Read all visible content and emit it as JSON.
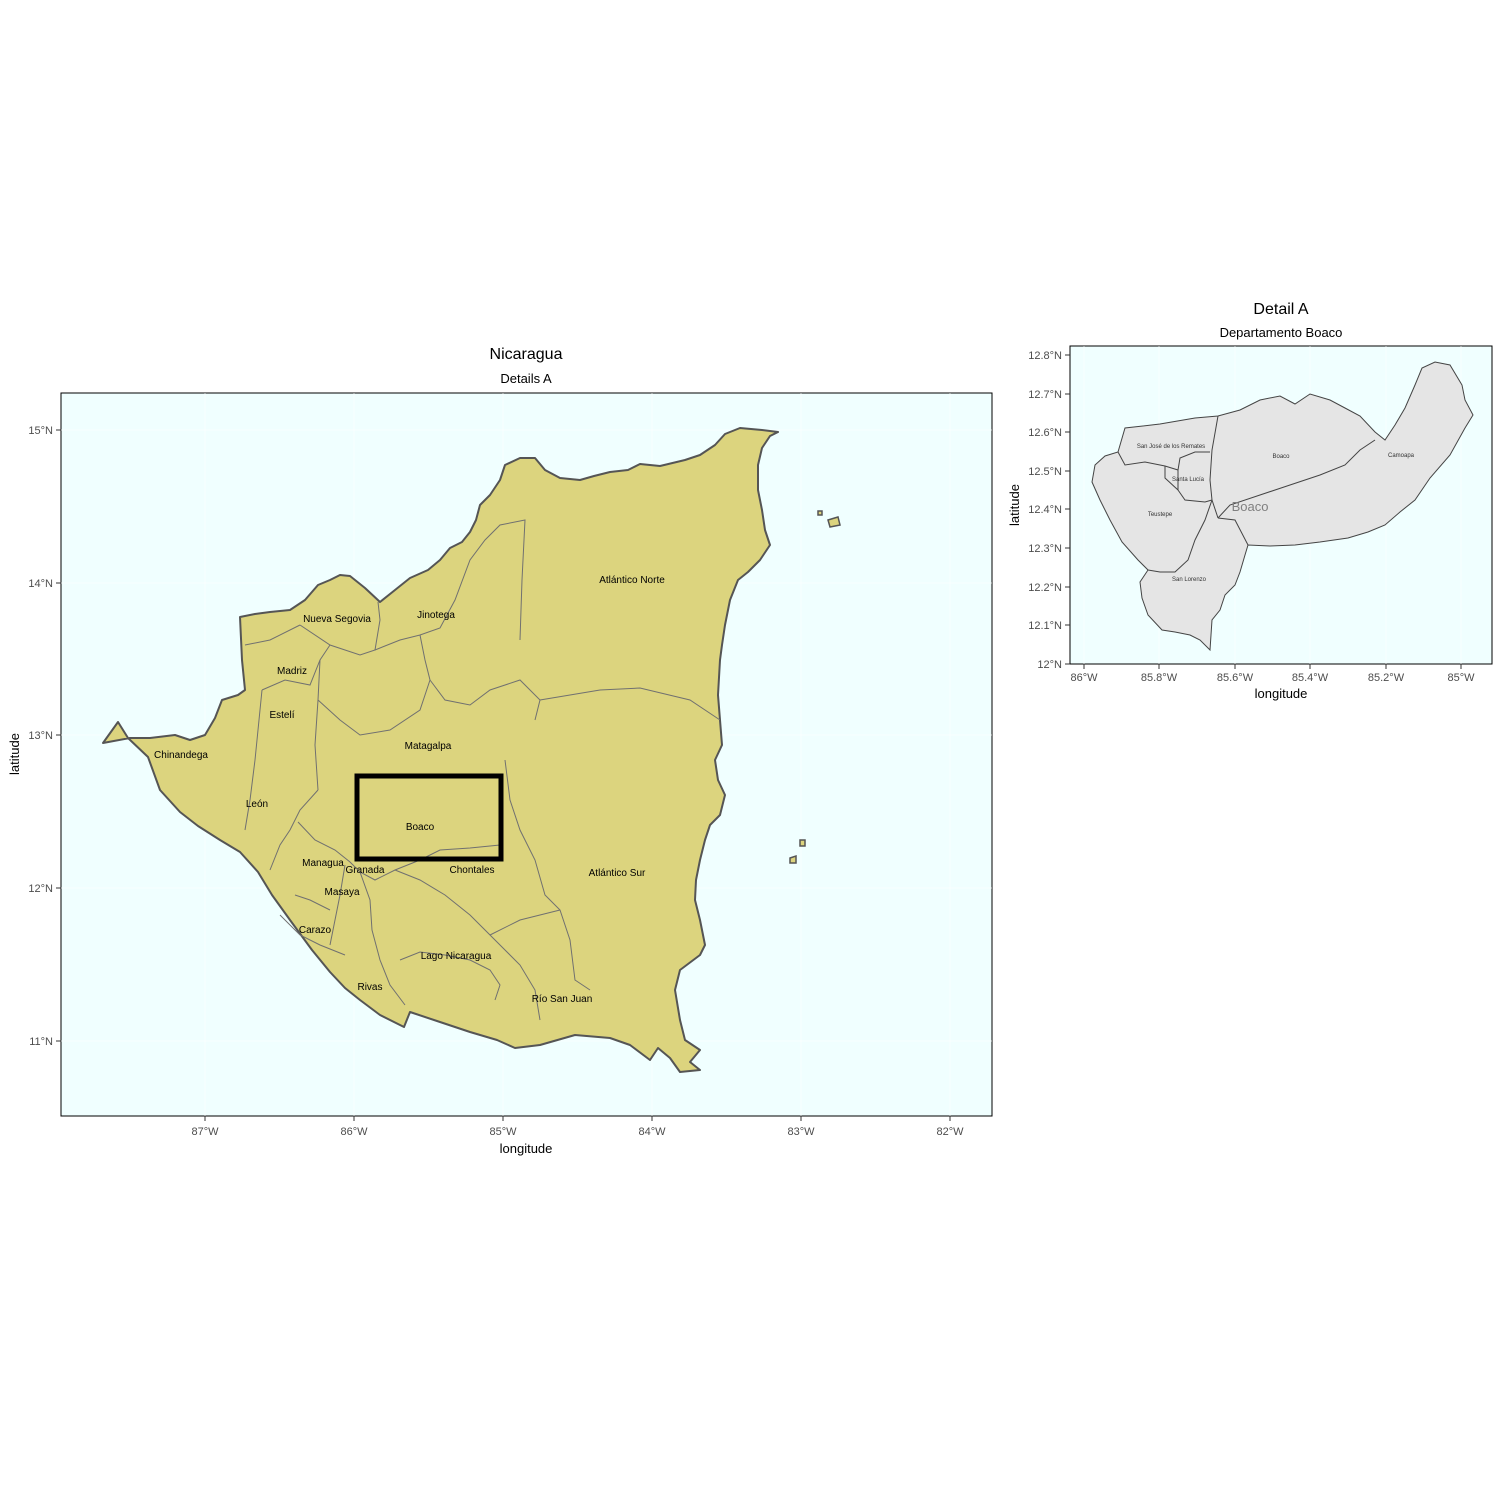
{
  "main_map": {
    "title": "Nicaragua",
    "subtitle": "Details A",
    "x_axis_label": "longitude",
    "y_axis_label": "latitude",
    "x_ticks": [
      "87°W",
      "86°W",
      "85°W",
      "84°W",
      "83°W",
      "82°W"
    ],
    "y_ticks": [
      "15°N",
      "14°N",
      "13°N",
      "12°N",
      "11°N"
    ],
    "colors": {
      "background": "#f0ffff",
      "land": "#dcd47e",
      "border": "#555555",
      "highlight_box": "#000000"
    },
    "department_labels": [
      "Atlántico Norte",
      "Nueva Segovia",
      "Jinotega",
      "Madriz",
      "Estelí",
      "Chinandega",
      "Matagalpa",
      "León",
      "Boaco",
      "Managua",
      "Granada",
      "Chontales",
      "Atlántico Sur",
      "Masaya",
      "Carazo",
      "Lago Nicaragua",
      "Rivas",
      "Río San Juan"
    ]
  },
  "inset_map": {
    "title": "Detail A",
    "subtitle": "Departamento Boaco",
    "x_axis_label": "longitude",
    "y_axis_label": "latitude",
    "x_ticks": [
      "86°W",
      "85.8°W",
      "85.6°W",
      "85.4°W",
      "85.2°W",
      "85°W"
    ],
    "y_ticks": [
      "12.8°N",
      "12.7°N",
      "12.6°N",
      "12.5°N",
      "12.4°N",
      "12.3°N",
      "12.2°N",
      "12.1°N",
      "12°N"
    ],
    "colors": {
      "background": "#f0ffff",
      "land": "#e5e5e5",
      "border": "#444444"
    },
    "department_label": "Boaco",
    "municipality_labels": [
      "San José de los Remates",
      "Boaco",
      "Camoapa",
      "Santa Lucía",
      "Teustepe",
      "San Lorenzo"
    ]
  }
}
